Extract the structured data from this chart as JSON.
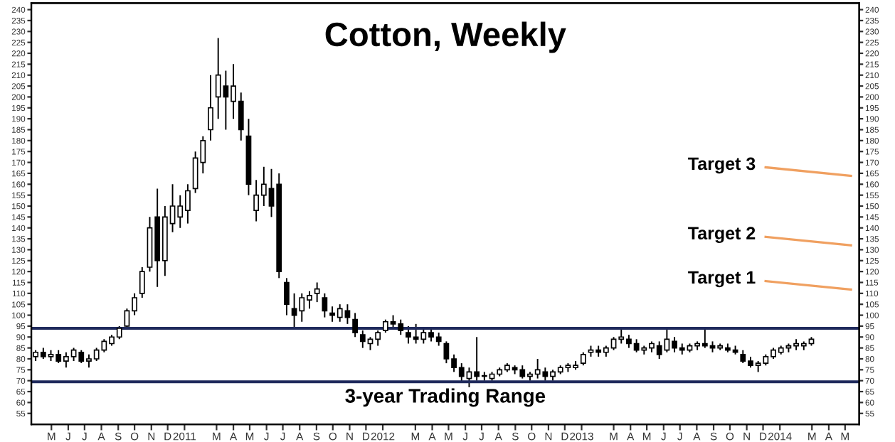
{
  "chart_data": {
    "type": "candlestick",
    "title": "Cotton, Weekly",
    "color": "#000000",
    "x": [
      "2010-04-02",
      "2010-04-16",
      "2010-04-30",
      "2010-05-14",
      "2010-05-28",
      "2010-06-11",
      "2010-06-25",
      "2010-07-09",
      "2010-07-23",
      "2010-08-06",
      "2010-08-20",
      "2010-09-03",
      "2010-09-17",
      "2010-10-01",
      "2010-10-15",
      "2010-10-29",
      "2010-11-12",
      "2010-11-26",
      "2010-12-10",
      "2010-12-24",
      "2011-01-07",
      "2011-01-21",
      "2011-02-04",
      "2011-02-18",
      "2011-03-04",
      "2011-03-18",
      "2011-04-01",
      "2011-04-15",
      "2011-04-29",
      "2011-05-13",
      "2011-05-27",
      "2011-06-10",
      "2011-06-24",
      "2011-07-08",
      "2011-07-22",
      "2011-08-05",
      "2011-08-19",
      "2011-09-02",
      "2011-09-16",
      "2011-09-30",
      "2011-10-14",
      "2011-10-28",
      "2011-11-11",
      "2011-11-25",
      "2011-12-09",
      "2011-12-23",
      "2012-01-06",
      "2012-01-20",
      "2012-02-03",
      "2012-02-17",
      "2012-03-02",
      "2012-03-16",
      "2012-03-30",
      "2012-04-13",
      "2012-04-27",
      "2012-05-11",
      "2012-05-25",
      "2012-06-08",
      "2012-06-22",
      "2012-07-06",
      "2012-07-20",
      "2012-08-03",
      "2012-08-17",
      "2012-08-31",
      "2012-09-14",
      "2012-09-28",
      "2012-10-12",
      "2012-10-26",
      "2012-11-09",
      "2012-11-23",
      "2012-12-07",
      "2012-12-21",
      "2013-01-04",
      "2013-01-18",
      "2013-02-01",
      "2013-02-15",
      "2013-03-01",
      "2013-03-15",
      "2013-03-29",
      "2013-04-12",
      "2013-04-26",
      "2013-05-10",
      "2013-05-24",
      "2013-06-07",
      "2013-06-21",
      "2013-07-05",
      "2013-07-19",
      "2013-08-02",
      "2013-08-16",
      "2013-08-30",
      "2013-09-13",
      "2013-09-27",
      "2013-10-11",
      "2013-10-25",
      "2013-11-08",
      "2013-11-22",
      "2013-12-06",
      "2013-12-20",
      "2014-01-03",
      "2014-01-17",
      "2014-01-31",
      "2014-02-14",
      "2014-02-28"
    ],
    "ohlc": [
      [
        81,
        84,
        79,
        83
      ],
      [
        83,
        85,
        80,
        81
      ],
      [
        81,
        84,
        79,
        82
      ],
      [
        82,
        84,
        78,
        79
      ],
      [
        79,
        83,
        76,
        81
      ],
      [
        81,
        85,
        79,
        84
      ],
      [
        83,
        84,
        78,
        79
      ],
      [
        79,
        82,
        76,
        80
      ],
      [
        80,
        85,
        79,
        84
      ],
      [
        84,
        89,
        83,
        88
      ],
      [
        87,
        91,
        86,
        90
      ],
      [
        90,
        95,
        89,
        94
      ],
      [
        95,
        103,
        94,
        102
      ],
      [
        102,
        110,
        100,
        108
      ],
      [
        110,
        122,
        108,
        120
      ],
      [
        122,
        145,
        120,
        140
      ],
      [
        145,
        158,
        113,
        125
      ],
      [
        125,
        150,
        118,
        145
      ],
      [
        142,
        160,
        138,
        150
      ],
      [
        145,
        155,
        140,
        150
      ],
      [
        148,
        160,
        142,
        157
      ],
      [
        158,
        175,
        156,
        172
      ],
      [
        170,
        182,
        165,
        180
      ],
      [
        185,
        210,
        180,
        195
      ],
      [
        200,
        227,
        190,
        210
      ],
      [
        205,
        212,
        185,
        200
      ],
      [
        198,
        215,
        190,
        205
      ],
      [
        198,
        202,
        180,
        185
      ],
      [
        182,
        190,
        155,
        160
      ],
      [
        148,
        162,
        143,
        155
      ],
      [
        155,
        168,
        150,
        160
      ],
      [
        158,
        167,
        145,
        150
      ],
      [
        160,
        165,
        117,
        120
      ],
      [
        115,
        117,
        100,
        105
      ],
      [
        103,
        110,
        94,
        100
      ],
      [
        102,
        110,
        97,
        108
      ],
      [
        107,
        111,
        103,
        109
      ],
      [
        110,
        115,
        106,
        112
      ],
      [
        108,
        110,
        99,
        102
      ],
      [
        101,
        104,
        97,
        100
      ],
      [
        99,
        105,
        97,
        103
      ],
      [
        102,
        105,
        96,
        99
      ],
      [
        98,
        101,
        90,
        92
      ],
      [
        91,
        93,
        85,
        88
      ],
      [
        87,
        90,
        84,
        89
      ],
      [
        89,
        93,
        86,
        92
      ],
      [
        93,
        98,
        92,
        97
      ],
      [
        97,
        100,
        94,
        96
      ],
      [
        96,
        98,
        91,
        93
      ],
      [
        92,
        95,
        87,
        90
      ],
      [
        90,
        96,
        87,
        89
      ],
      [
        89,
        94,
        87,
        92
      ],
      [
        92,
        94,
        88,
        90
      ],
      [
        90,
        92,
        86,
        88
      ],
      [
        87,
        88,
        78,
        80
      ],
      [
        80,
        82,
        74,
        76
      ],
      [
        76,
        78,
        69,
        72
      ],
      [
        71,
        76,
        67,
        74
      ],
      [
        74,
        90,
        70,
        72
      ],
      [
        72,
        74,
        70,
        72
      ],
      [
        71,
        74,
        70,
        73
      ],
      [
        73,
        76,
        72,
        75
      ],
      [
        75,
        78,
        74,
        77
      ],
      [
        76,
        77,
        73,
        75
      ],
      [
        75,
        77,
        71,
        72
      ],
      [
        72,
        74,
        70,
        73
      ],
      [
        73,
        80,
        71,
        75
      ],
      [
        74,
        76,
        70,
        72
      ],
      [
        72,
        75,
        70,
        74
      ],
      [
        74,
        77,
        73,
        76
      ],
      [
        76,
        78,
        74,
        77
      ],
      [
        76,
        79,
        75,
        77
      ],
      [
        78,
        83,
        77,
        82
      ],
      [
        83,
        86,
        81,
        84
      ],
      [
        84,
        86,
        81,
        83
      ],
      [
        83,
        86,
        81,
        85
      ],
      [
        85,
        90,
        84,
        89
      ],
      [
        89,
        94,
        87,
        90
      ],
      [
        89,
        91,
        85,
        87
      ],
      [
        87,
        89,
        83,
        84
      ],
      [
        84,
        86,
        82,
        85
      ],
      [
        85,
        88,
        83,
        87
      ],
      [
        86,
        88,
        80,
        82
      ],
      [
        84,
        94,
        83,
        89
      ],
      [
        88,
        90,
        83,
        85
      ],
      [
        85,
        87,
        82,
        84
      ],
      [
        84,
        87,
        83,
        86
      ],
      [
        86,
        88,
        84,
        87
      ],
      [
        87,
        94,
        85,
        86
      ],
      [
        86,
        88,
        83,
        85
      ],
      [
        85,
        87,
        84,
        86
      ],
      [
        85,
        87,
        83,
        84
      ],
      [
        84,
        86,
        82,
        83
      ],
      [
        82,
        84,
        78,
        79
      ],
      [
        79,
        81,
        76,
        77
      ],
      [
        77,
        79,
        74,
        78
      ],
      [
        78,
        82,
        77,
        81
      ],
      [
        81,
        85,
        80,
        84
      ],
      [
        83,
        86,
        82,
        85
      ],
      [
        85,
        87,
        83,
        86
      ],
      [
        86,
        89,
        84,
        87
      ],
      [
        86,
        88,
        84,
        87
      ],
      [
        87,
        90,
        86,
        89
      ]
    ],
    "xlim": [
      "2010-03-25",
      "2014-05-27"
    ],
    "xticks": [
      {
        "value": "2010-05-01",
        "label": "M"
      },
      {
        "value": "2010-06-01",
        "label": "J"
      },
      {
        "value": "2010-07-01",
        "label": "J"
      },
      {
        "value": "2010-08-01",
        "label": "A"
      },
      {
        "value": "2010-09-01",
        "label": "S"
      },
      {
        "value": "2010-10-01",
        "label": "O"
      },
      {
        "value": "2010-11-01",
        "label": "N"
      },
      {
        "value": "2010-12-01",
        "label": "D"
      },
      {
        "value": "2011-01-01",
        "label": "2011"
      },
      {
        "value": "2011-03-01",
        "label": "M"
      },
      {
        "value": "2011-04-01",
        "label": "A"
      },
      {
        "value": "2011-05-01",
        "label": "M"
      },
      {
        "value": "2011-06-01",
        "label": "J"
      },
      {
        "value": "2011-07-01",
        "label": "J"
      },
      {
        "value": "2011-08-01",
        "label": "A"
      },
      {
        "value": "2011-09-01",
        "label": "S"
      },
      {
        "value": "2011-10-01",
        "label": "O"
      },
      {
        "value": "2011-11-01",
        "label": "N"
      },
      {
        "value": "2011-12-01",
        "label": "D"
      },
      {
        "value": "2012-01-01",
        "label": "2012"
      },
      {
        "value": "2012-03-01",
        "label": "M"
      },
      {
        "value": "2012-04-01",
        "label": "A"
      },
      {
        "value": "2012-05-01",
        "label": "M"
      },
      {
        "value": "2012-06-01",
        "label": "J"
      },
      {
        "value": "2012-07-01",
        "label": "J"
      },
      {
        "value": "2012-08-01",
        "label": "A"
      },
      {
        "value": "2012-09-01",
        "label": "S"
      },
      {
        "value": "2012-10-01",
        "label": "O"
      },
      {
        "value": "2012-11-01",
        "label": "N"
      },
      {
        "value": "2012-12-01",
        "label": "D"
      },
      {
        "value": "2013-01-01",
        "label": "2013"
      },
      {
        "value": "2013-03-01",
        "label": "M"
      },
      {
        "value": "2013-04-01",
        "label": "A"
      },
      {
        "value": "2013-05-01",
        "label": "M"
      },
      {
        "value": "2013-06-01",
        "label": "J"
      },
      {
        "value": "2013-07-01",
        "label": "J"
      },
      {
        "value": "2013-08-01",
        "label": "A"
      },
      {
        "value": "2013-09-01",
        "label": "S"
      },
      {
        "value": "2013-10-01",
        "label": "O"
      },
      {
        "value": "2013-11-01",
        "label": "N"
      },
      {
        "value": "2013-12-01",
        "label": "D"
      },
      {
        "value": "2014-01-01",
        "label": "2014"
      },
      {
        "value": "2014-03-01",
        "label": "M"
      },
      {
        "value": "2014-04-01",
        "label": "A"
      },
      {
        "value": "2014-05-01",
        "label": "M"
      }
    ],
    "ylim": [
      50,
      243
    ],
    "yticks": [
      55,
      60,
      65,
      70,
      75,
      80,
      85,
      90,
      95,
      100,
      105,
      110,
      115,
      120,
      125,
      130,
      135,
      140,
      145,
      150,
      155,
      160,
      165,
      170,
      175,
      180,
      185,
      190,
      195,
      200,
      205,
      210,
      215,
      220,
      225,
      230,
      235,
      240
    ],
    "y2lim": [
      50,
      243
    ],
    "y2ticks": [
      55,
      60,
      65,
      70,
      75,
      80,
      85,
      90,
      95,
      100,
      105,
      110,
      115,
      120,
      125,
      130,
      135,
      140,
      145,
      150,
      155,
      160,
      165,
      170,
      175,
      180,
      185,
      190,
      195,
      200,
      205,
      210,
      215,
      220,
      225,
      230,
      235,
      240
    ],
    "ref_lines": [
      {
        "axis": "y",
        "value": 94,
        "color": "#1f2a5c"
      },
      {
        "axis": "y",
        "value": 69.5,
        "label": "3-year Trading Range",
        "color": "#1f2a5c"
      }
    ],
    "annotations": [
      "Target 3",
      "Target 2",
      "Target 1"
    ],
    "grid": false
  }
}
